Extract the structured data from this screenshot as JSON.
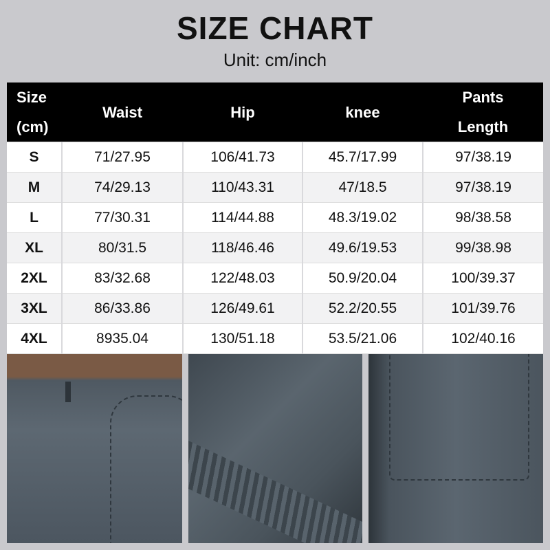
{
  "title": "SIZE CHART",
  "unit": "Unit: cm/inch",
  "table": {
    "headers": [
      {
        "line1": "Size",
        "line2": "(cm)"
      },
      {
        "line1": "Waist",
        "line2": ""
      },
      {
        "line1": "Hip",
        "line2": ""
      },
      {
        "line1": "knee",
        "line2": ""
      },
      {
        "line1": "Pants",
        "line2": "Length"
      }
    ],
    "rows": [
      [
        "S",
        "71/27.95",
        "106/41.73",
        "45.7/17.99",
        "97/38.19"
      ],
      [
        "M",
        "74/29.13",
        "110/43.31",
        "47/18.5",
        "97/38.19"
      ],
      [
        "L",
        "77/30.31",
        "114/44.88",
        "48.3/19.02",
        "98/38.58"
      ],
      [
        "XL",
        "80/31.5",
        "118/46.46",
        "49.6/19.53",
        "99/38.98"
      ],
      [
        "2XL",
        "83/32.68",
        "122/48.03",
        "50.9/20.04",
        "100/39.37"
      ],
      [
        "3XL",
        "86/33.86",
        "126/49.61",
        "52.2/20.55",
        "101/39.76"
      ],
      [
        "4XL",
        "8935.04",
        "130/51.18",
        "53.5/21.06",
        "102/40.16"
      ]
    ]
  },
  "colors": {
    "header_bg": "#000000",
    "background": "#c9c9cd",
    "fabric": "#5a656e"
  }
}
